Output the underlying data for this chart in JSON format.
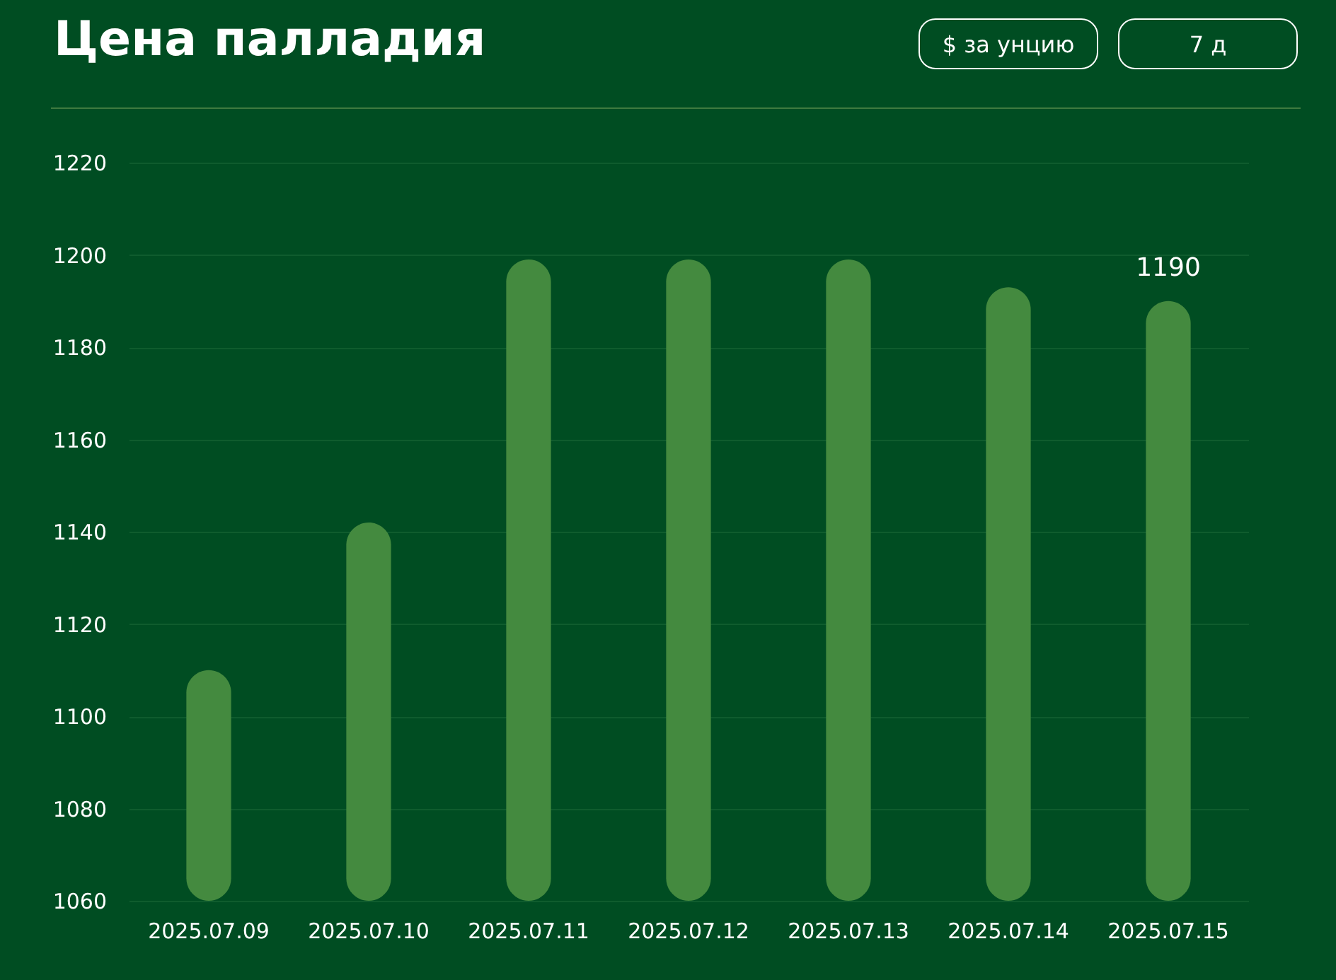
{
  "chart_data": {
    "type": "bar",
    "title": "Цена палладия",
    "annotations": [
      "$ за унцию",
      "7 д"
    ],
    "categories": [
      "2025.07.09",
      "2025.07.10",
      "2025.07.11",
      "2025.07.12",
      "2025.07.13",
      "2025.07.14",
      "2025.07.15"
    ],
    "values": [
      1110,
      1142,
      1199,
      1199,
      1199,
      1193,
      1190
    ],
    "value_labels": [
      null,
      null,
      null,
      null,
      null,
      null,
      "1190"
    ],
    "color": "#448a3f",
    "ylim": [
      1060,
      1220
    ],
    "yticks": [
      1060,
      1080,
      1100,
      1120,
      1140,
      1160,
      1180,
      1200,
      1220
    ],
    "grid": "y"
  }
}
